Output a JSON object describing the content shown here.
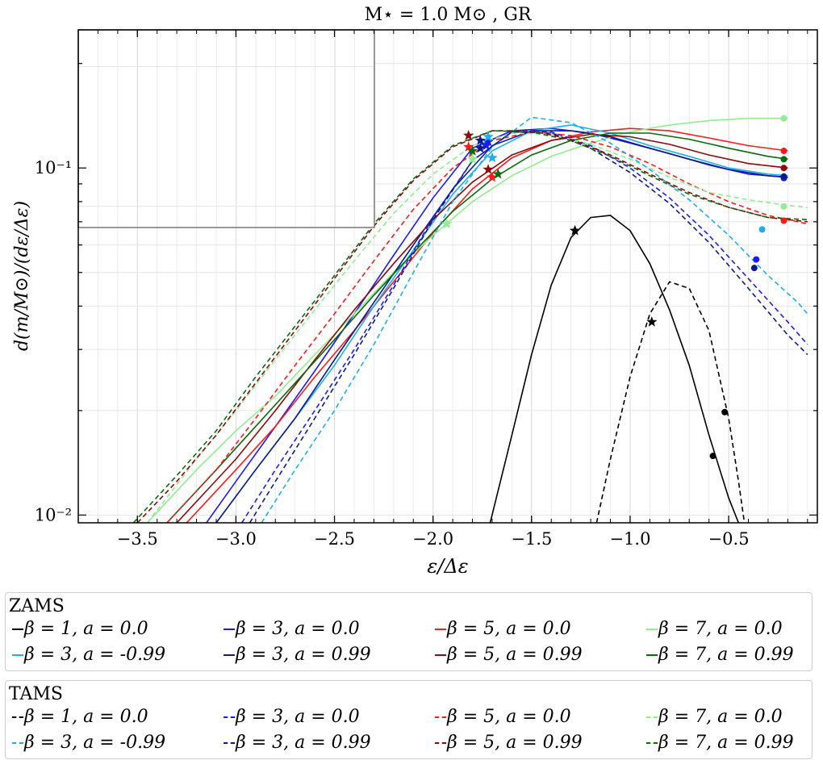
{
  "chart_data": {
    "type": "line",
    "title": "M⋆ = 1.0 M⊙ , GR",
    "xlabel": "ε/Δε",
    "ylabel": "d(m/M⊙)/(dε/Δε)",
    "xscale": "linear",
    "yscale": "log",
    "xlim": [
      -3.8,
      -0.05
    ],
    "ylim": [
      0.0095,
      0.25
    ],
    "xticks": [
      -3.5,
      -3.0,
      -2.5,
      -2.0,
      -1.5,
      -1.0,
      -0.5
    ],
    "xtick_labels": [
      "−3.5",
      "−3.0",
      "−2.5",
      "−2.0",
      "−1.5",
      "−1.0",
      "−0.5"
    ],
    "yticks": [
      0.01,
      0.1
    ],
    "ytick_labels": [
      "10⁻²",
      "10⁻¹"
    ],
    "grid": true,
    "markers": {
      "star": "peak",
      "dot": "end"
    },
    "inset": {
      "xlim": [
        -3.8,
        -2.3
      ],
      "ylim": [
        0.09,
        0.24
      ],
      "position": "top-left"
    },
    "series": [
      {
        "name": "β = 1, a = 0.0",
        "group": "ZAMS",
        "color": "#000000",
        "dash": false,
        "x": [
          -1.71,
          -1.6,
          -1.5,
          -1.4,
          -1.3,
          -1.2,
          -1.1,
          -1.0,
          -0.9,
          -0.8,
          -0.7,
          -0.6,
          -0.5,
          -0.45
        ],
        "y": [
          0.0095,
          0.017,
          0.029,
          0.046,
          0.063,
          0.072,
          0.073,
          0.066,
          0.053,
          0.039,
          0.027,
          0.017,
          0.0112,
          0.0095
        ],
        "star": [
          -1.28,
          0.066
        ],
        "dot": [
          -0.58,
          0.0148
        ]
      },
      {
        "name": "β = 3, a = 0.0",
        "group": "ZAMS",
        "color": "#1a1aff",
        "dash": false,
        "x": [
          -3.15,
          -3.0,
          -2.8,
          -2.6,
          -2.4,
          -2.2,
          -2.0,
          -1.8,
          -1.6,
          -1.4,
          -1.2,
          -1.0,
          -0.8,
          -0.6,
          -0.4,
          -0.2
        ],
        "y": [
          0.0095,
          0.0125,
          0.018,
          0.026,
          0.038,
          0.056,
          0.082,
          0.114,
          0.128,
          0.13,
          0.126,
          0.118,
          0.11,
          0.102,
          0.096,
          0.094
        ],
        "star": [
          -1.72,
          0.119
        ],
        "dot": [
          -0.22,
          0.0935
        ]
      },
      {
        "name": "β = 5, a = 0.0",
        "group": "ZAMS",
        "color": "#ff1a1a",
        "dash": false,
        "x": [
          -3.25,
          -3.0,
          -2.8,
          -2.6,
          -2.4,
          -2.2,
          -2.0,
          -1.8,
          -1.6,
          -1.4,
          -1.2,
          -1.0,
          -0.8,
          -0.6,
          -0.4,
          -0.2
        ],
        "y": [
          0.0095,
          0.0135,
          0.018,
          0.025,
          0.034,
          0.047,
          0.065,
          0.087,
          0.107,
          0.12,
          0.127,
          0.13,
          0.128,
          0.122,
          0.116,
          0.112
        ],
        "star": [
          -1.7,
          0.094
        ],
        "dot": [
          -0.22,
          0.112
        ]
      },
      {
        "name": "β = 7, a = 0.0",
        "group": "ZAMS",
        "color": "#90ee90",
        "dash": false,
        "x": [
          -3.45,
          -3.2,
          -3.0,
          -2.8,
          -2.6,
          -2.4,
          -2.2,
          -2.0,
          -1.8,
          -1.6,
          -1.4,
          -1.2,
          -1.0,
          -0.8,
          -0.6,
          -0.4,
          -0.2
        ],
        "y": [
          0.0095,
          0.0135,
          0.0175,
          0.022,
          0.029,
          0.038,
          0.05,
          0.064,
          0.08,
          0.095,
          0.108,
          0.118,
          0.127,
          0.133,
          0.137,
          0.139,
          0.139
        ],
        "star": [
          -1.93,
          0.069
        ],
        "dot": [
          -0.22,
          0.139
        ]
      },
      {
        "name": "β = 3, a = -0.99",
        "group": "ZAMS",
        "color": "#1ab0f0",
        "dash": false,
        "x": [
          -3.1,
          -2.9,
          -2.7,
          -2.5,
          -2.3,
          -2.1,
          -1.9,
          -1.7,
          -1.5,
          -1.3,
          -1.1,
          -0.9,
          -0.7,
          -0.5,
          -0.3,
          -0.2
        ],
        "y": [
          0.0095,
          0.0135,
          0.019,
          0.027,
          0.04,
          0.058,
          0.084,
          0.112,
          0.128,
          0.133,
          0.126,
          0.116,
          0.108,
          0.1,
          0.096,
          0.095
        ],
        "star": [
          -1.7,
          0.107
        ],
        "dot": null
      },
      {
        "name": "β = 3, a = 0.99",
        "group": "ZAMS",
        "color": "#0a1a8c",
        "dash": false,
        "x": [
          -3.1,
          -2.9,
          -2.7,
          -2.5,
          -2.3,
          -2.1,
          -1.9,
          -1.7,
          -1.5,
          -1.3,
          -1.1,
          -0.9,
          -0.7,
          -0.5,
          -0.3,
          -0.2
        ],
        "y": [
          0.0095,
          0.0135,
          0.019,
          0.028,
          0.041,
          0.06,
          0.087,
          0.116,
          0.128,
          0.128,
          0.123,
          0.114,
          0.106,
          0.099,
          0.095,
          0.094
        ],
        "star": [
          -1.76,
          0.12
        ],
        "dot": [
          -0.22,
          0.0945
        ]
      },
      {
        "name": "β = 5, a = 0.99",
        "group": "ZAMS",
        "color": "#8b0a0a",
        "dash": false,
        "x": [
          -3.3,
          -3.0,
          -2.8,
          -2.6,
          -2.4,
          -2.2,
          -2.0,
          -1.8,
          -1.6,
          -1.4,
          -1.2,
          -1.0,
          -0.8,
          -0.6,
          -0.4,
          -0.2
        ],
        "y": [
          0.0095,
          0.0145,
          0.02,
          0.028,
          0.039,
          0.053,
          0.071,
          0.091,
          0.109,
          0.12,
          0.125,
          0.123,
          0.117,
          0.109,
          0.103,
          0.1
        ],
        "star": [
          -1.72,
          0.099
        ],
        "dot": [
          -0.22,
          0.1
        ]
      },
      {
        "name": "β = 7, a = 0.99",
        "group": "ZAMS",
        "color": "#0a6b0a",
        "dash": false,
        "x": [
          -3.35,
          -3.1,
          -2.9,
          -2.7,
          -2.5,
          -2.3,
          -2.1,
          -1.9,
          -1.7,
          -1.5,
          -1.3,
          -1.1,
          -0.9,
          -0.7,
          -0.5,
          -0.3,
          -0.2
        ],
        "y": [
          0.0095,
          0.0135,
          0.018,
          0.024,
          0.032,
          0.043,
          0.057,
          0.075,
          0.093,
          0.109,
          0.12,
          0.126,
          0.126,
          0.121,
          0.114,
          0.108,
          0.106
        ],
        "star": [
          -1.67,
          0.096
        ],
        "dot": [
          -0.22,
          0.106
        ]
      },
      {
        "name": "β = 1, a = 0.0",
        "group": "TAMS",
        "color": "#000000",
        "dash": true,
        "x": [
          -1.17,
          -1.1,
          -1.0,
          -0.9,
          -0.8,
          -0.7,
          -0.6,
          -0.5,
          -0.45,
          -0.42
        ],
        "y": [
          0.0095,
          0.0145,
          0.025,
          0.038,
          0.047,
          0.045,
          0.034,
          0.019,
          0.0125,
          0.0095
        ],
        "star": [
          -0.89,
          0.036
        ],
        "dot": [
          -0.52,
          0.0198
        ]
      },
      {
        "name": "β = 3, a = 0.0",
        "group": "TAMS",
        "color": "#1a1aff",
        "dash": true,
        "x": [
          -2.97,
          -2.8,
          -2.6,
          -2.4,
          -2.2,
          -2.0,
          -1.8,
          -1.6,
          -1.4,
          -1.2,
          -1.0,
          -0.8,
          -0.6,
          -0.4,
          -0.2,
          -0.1
        ],
        "y": [
          0.0095,
          0.0135,
          0.02,
          0.03,
          0.046,
          0.072,
          0.105,
          0.127,
          0.127,
          0.116,
          0.1,
          0.082,
          0.064,
          0.048,
          0.036,
          0.031
        ],
        "star": [
          -1.73,
          0.116
        ],
        "dot": [
          -0.36,
          0.0545
        ]
      },
      {
        "name": "β = 5, a = 0.0",
        "group": "TAMS",
        "color": "#ff1a1a",
        "dash": true,
        "x": [
          -3.35,
          -3.1,
          -2.9,
          -2.7,
          -2.5,
          -2.3,
          -2.1,
          -1.9,
          -1.7,
          -1.5,
          -1.3,
          -1.1,
          -0.9,
          -0.7,
          -0.5,
          -0.3,
          -0.2,
          -0.1
        ],
        "y": [
          0.0095,
          0.0135,
          0.019,
          0.027,
          0.038,
          0.054,
          0.076,
          0.1,
          0.12,
          0.127,
          0.124,
          0.115,
          0.103,
          0.09,
          0.08,
          0.073,
          0.071,
          0.069
        ],
        "star": [
          -1.82,
          0.115
        ],
        "dot": [
          -0.22,
          0.0705
        ]
      },
      {
        "name": "β = 7, a = 0.0",
        "group": "TAMS",
        "color": "#90ee90",
        "dash": true,
        "x": [
          -3.45,
          -3.2,
          -3.0,
          -2.8,
          -2.6,
          -2.4,
          -2.2,
          -2.0,
          -1.8,
          -1.6,
          -1.4,
          -1.2,
          -1.0,
          -0.8,
          -0.6,
          -0.4,
          -0.2,
          -0.1
        ],
        "y": [
          0.0095,
          0.0145,
          0.02,
          0.028,
          0.039,
          0.054,
          0.074,
          0.096,
          0.116,
          0.126,
          0.125,
          0.117,
          0.106,
          0.094,
          0.085,
          0.081,
          0.078,
          0.077
        ],
        "star": [
          -1.8,
          0.106
        ],
        "dot": [
          -0.22,
          0.0775
        ]
      },
      {
        "name": "β = 3, a = -0.99",
        "group": "TAMS",
        "color": "#1ab0f0",
        "dash": true,
        "x": [
          -2.87,
          -2.7,
          -2.5,
          -2.3,
          -2.1,
          -1.9,
          -1.7,
          -1.5,
          -1.3,
          -1.1,
          -0.9,
          -0.7,
          -0.5,
          -0.3,
          -0.15,
          -0.1
        ],
        "y": [
          0.0095,
          0.0135,
          0.02,
          0.031,
          0.05,
          0.08,
          0.115,
          0.14,
          0.135,
          0.118,
          0.099,
          0.081,
          0.064,
          0.049,
          0.041,
          0.038
        ],
        "star": [
          -1.72,
          0.123
        ],
        "dot": [
          -0.33,
          0.0665
        ]
      },
      {
        "name": "β = 3, a = 0.99",
        "group": "TAMS",
        "color": "#0a1a8c",
        "dash": true,
        "x": [
          -2.93,
          -2.8,
          -2.6,
          -2.4,
          -2.2,
          -2.0,
          -1.8,
          -1.6,
          -1.4,
          -1.2,
          -1.0,
          -0.8,
          -0.6,
          -0.4,
          -0.2,
          -0.1
        ],
        "y": [
          0.0095,
          0.0125,
          0.019,
          0.029,
          0.045,
          0.071,
          0.105,
          0.127,
          0.126,
          0.114,
          0.097,
          0.079,
          0.061,
          0.045,
          0.033,
          0.029
        ],
        "star": [
          -1.76,
          0.114
        ],
        "dot": [
          -0.37,
          0.0515
        ]
      },
      {
        "name": "β = 5, a = 0.99",
        "group": "TAMS",
        "color": "#8b0a0a",
        "dash": true,
        "x": [
          -3.5,
          -3.3,
          -3.1,
          -2.9,
          -2.7,
          -2.5,
          -2.3,
          -2.1,
          -1.9,
          -1.7,
          -1.5,
          -1.3,
          -1.1,
          -0.9,
          -0.7,
          -0.5,
          -0.3,
          -0.2,
          -0.1
        ],
        "y": [
          0.0095,
          0.0125,
          0.017,
          0.024,
          0.034,
          0.048,
          0.068,
          0.092,
          0.115,
          0.128,
          0.128,
          0.121,
          0.109,
          0.096,
          0.085,
          0.077,
          0.072,
          0.071,
          0.07
        ],
        "star": [
          -1.82,
          0.124
        ],
        "dot": null
      },
      {
        "name": "β = 7, a = 0.99",
        "group": "TAMS",
        "color": "#0a6b0a",
        "dash": true,
        "x": [
          -3.52,
          -3.3,
          -3.1,
          -2.9,
          -2.7,
          -2.5,
          -2.3,
          -2.1,
          -1.9,
          -1.7,
          -1.5,
          -1.3,
          -1.1,
          -0.9,
          -0.7,
          -0.5,
          -0.3,
          -0.2,
          -0.1
        ],
        "y": [
          0.0095,
          0.013,
          0.0175,
          0.025,
          0.035,
          0.049,
          0.069,
          0.093,
          0.116,
          0.128,
          0.127,
          0.12,
          0.108,
          0.095,
          0.084,
          0.077,
          0.072,
          0.0715,
          0.071
        ],
        "star": [
          -1.8,
          0.112
        ],
        "dot": null
      }
    ]
  },
  "legend": {
    "zams_title": "ZAMS",
    "tams_title": "TAMS"
  }
}
